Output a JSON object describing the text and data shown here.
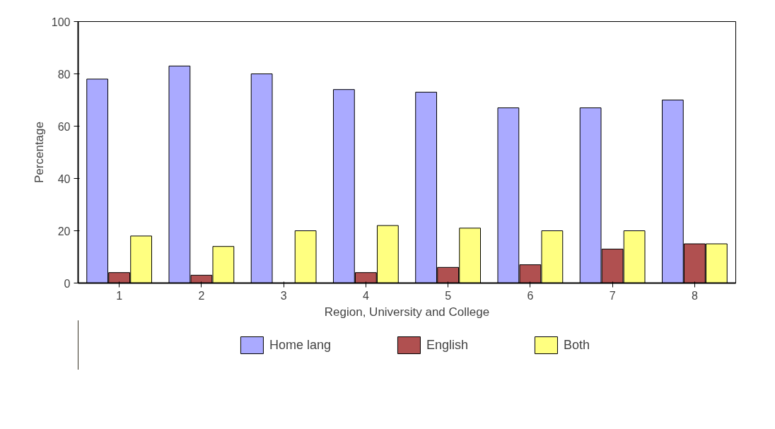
{
  "chart_data": {
    "type": "bar",
    "xlabel": "Region, University and College",
    "ylabel": "Percentage",
    "categories": [
      "1",
      "2",
      "3",
      "4",
      "5",
      "6",
      "7",
      "8"
    ],
    "series": [
      {
        "name": "Home lang",
        "color": "#aaaaff",
        "values": [
          78,
          83,
          80,
          74,
          73,
          67,
          67,
          70
        ]
      },
      {
        "name": "English",
        "color": "#b05050",
        "values": [
          4,
          3,
          0,
          4,
          6,
          7,
          13,
          15
        ]
      },
      {
        "name": "Both",
        "color": "#ffff80",
        "values": [
          18,
          14,
          20,
          22,
          21,
          20,
          20,
          15
        ]
      }
    ],
    "ylim": [
      0,
      100
    ],
    "yticks": [
      0,
      20,
      40,
      60,
      80,
      100
    ],
    "grid": false,
    "legend": "bottom"
  }
}
